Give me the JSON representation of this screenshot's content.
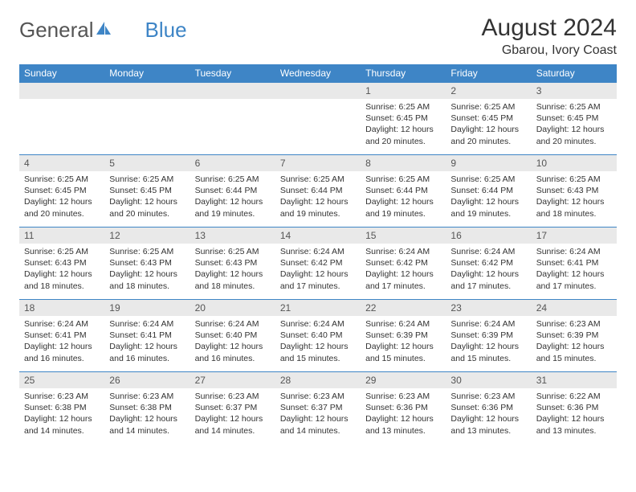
{
  "logo": {
    "word1": "General",
    "word2": "Blue"
  },
  "title": "August 2024",
  "location": "Gbarou, Ivory Coast",
  "colors": {
    "header_bg": "#3e85c6",
    "header_text": "#ffffff",
    "daynum_bg": "#e9e9e9",
    "row_border": "#3e85c6",
    "body_text": "#333333",
    "page_bg": "#ffffff"
  },
  "typography": {
    "title_fontsize": 30,
    "location_fontsize": 16,
    "dayheader_fontsize": 12,
    "daynum_fontsize": 12,
    "cell_fontsize": 10.5
  },
  "day_headers": [
    "Sunday",
    "Monday",
    "Tuesday",
    "Wednesday",
    "Thursday",
    "Friday",
    "Saturday"
  ],
  "weeks": [
    [
      {
        "n": "",
        "lines": []
      },
      {
        "n": "",
        "lines": []
      },
      {
        "n": "",
        "lines": []
      },
      {
        "n": "",
        "lines": []
      },
      {
        "n": "1",
        "lines": [
          "Sunrise: 6:25 AM",
          "Sunset: 6:45 PM",
          "Daylight: 12 hours and 20 minutes."
        ]
      },
      {
        "n": "2",
        "lines": [
          "Sunrise: 6:25 AM",
          "Sunset: 6:45 PM",
          "Daylight: 12 hours and 20 minutes."
        ]
      },
      {
        "n": "3",
        "lines": [
          "Sunrise: 6:25 AM",
          "Sunset: 6:45 PM",
          "Daylight: 12 hours and 20 minutes."
        ]
      }
    ],
    [
      {
        "n": "4",
        "lines": [
          "Sunrise: 6:25 AM",
          "Sunset: 6:45 PM",
          "Daylight: 12 hours and 20 minutes."
        ]
      },
      {
        "n": "5",
        "lines": [
          "Sunrise: 6:25 AM",
          "Sunset: 6:45 PM",
          "Daylight: 12 hours and 20 minutes."
        ]
      },
      {
        "n": "6",
        "lines": [
          "Sunrise: 6:25 AM",
          "Sunset: 6:44 PM",
          "Daylight: 12 hours and 19 minutes."
        ]
      },
      {
        "n": "7",
        "lines": [
          "Sunrise: 6:25 AM",
          "Sunset: 6:44 PM",
          "Daylight: 12 hours and 19 minutes."
        ]
      },
      {
        "n": "8",
        "lines": [
          "Sunrise: 6:25 AM",
          "Sunset: 6:44 PM",
          "Daylight: 12 hours and 19 minutes."
        ]
      },
      {
        "n": "9",
        "lines": [
          "Sunrise: 6:25 AM",
          "Sunset: 6:44 PM",
          "Daylight: 12 hours and 19 minutes."
        ]
      },
      {
        "n": "10",
        "lines": [
          "Sunrise: 6:25 AM",
          "Sunset: 6:43 PM",
          "Daylight: 12 hours and 18 minutes."
        ]
      }
    ],
    [
      {
        "n": "11",
        "lines": [
          "Sunrise: 6:25 AM",
          "Sunset: 6:43 PM",
          "Daylight: 12 hours and 18 minutes."
        ]
      },
      {
        "n": "12",
        "lines": [
          "Sunrise: 6:25 AM",
          "Sunset: 6:43 PM",
          "Daylight: 12 hours and 18 minutes."
        ]
      },
      {
        "n": "13",
        "lines": [
          "Sunrise: 6:25 AM",
          "Sunset: 6:43 PM",
          "Daylight: 12 hours and 18 minutes."
        ]
      },
      {
        "n": "14",
        "lines": [
          "Sunrise: 6:24 AM",
          "Sunset: 6:42 PM",
          "Daylight: 12 hours and 17 minutes."
        ]
      },
      {
        "n": "15",
        "lines": [
          "Sunrise: 6:24 AM",
          "Sunset: 6:42 PM",
          "Daylight: 12 hours and 17 minutes."
        ]
      },
      {
        "n": "16",
        "lines": [
          "Sunrise: 6:24 AM",
          "Sunset: 6:42 PM",
          "Daylight: 12 hours and 17 minutes."
        ]
      },
      {
        "n": "17",
        "lines": [
          "Sunrise: 6:24 AM",
          "Sunset: 6:41 PM",
          "Daylight: 12 hours and 17 minutes."
        ]
      }
    ],
    [
      {
        "n": "18",
        "lines": [
          "Sunrise: 6:24 AM",
          "Sunset: 6:41 PM",
          "Daylight: 12 hours and 16 minutes."
        ]
      },
      {
        "n": "19",
        "lines": [
          "Sunrise: 6:24 AM",
          "Sunset: 6:41 PM",
          "Daylight: 12 hours and 16 minutes."
        ]
      },
      {
        "n": "20",
        "lines": [
          "Sunrise: 6:24 AM",
          "Sunset: 6:40 PM",
          "Daylight: 12 hours and 16 minutes."
        ]
      },
      {
        "n": "21",
        "lines": [
          "Sunrise: 6:24 AM",
          "Sunset: 6:40 PM",
          "Daylight: 12 hours and 15 minutes."
        ]
      },
      {
        "n": "22",
        "lines": [
          "Sunrise: 6:24 AM",
          "Sunset: 6:39 PM",
          "Daylight: 12 hours and 15 minutes."
        ]
      },
      {
        "n": "23",
        "lines": [
          "Sunrise: 6:24 AM",
          "Sunset: 6:39 PM",
          "Daylight: 12 hours and 15 minutes."
        ]
      },
      {
        "n": "24",
        "lines": [
          "Sunrise: 6:23 AM",
          "Sunset: 6:39 PM",
          "Daylight: 12 hours and 15 minutes."
        ]
      }
    ],
    [
      {
        "n": "25",
        "lines": [
          "Sunrise: 6:23 AM",
          "Sunset: 6:38 PM",
          "Daylight: 12 hours and 14 minutes."
        ]
      },
      {
        "n": "26",
        "lines": [
          "Sunrise: 6:23 AM",
          "Sunset: 6:38 PM",
          "Daylight: 12 hours and 14 minutes."
        ]
      },
      {
        "n": "27",
        "lines": [
          "Sunrise: 6:23 AM",
          "Sunset: 6:37 PM",
          "Daylight: 12 hours and 14 minutes."
        ]
      },
      {
        "n": "28",
        "lines": [
          "Sunrise: 6:23 AM",
          "Sunset: 6:37 PM",
          "Daylight: 12 hours and 14 minutes."
        ]
      },
      {
        "n": "29",
        "lines": [
          "Sunrise: 6:23 AM",
          "Sunset: 6:36 PM",
          "Daylight: 12 hours and 13 minutes."
        ]
      },
      {
        "n": "30",
        "lines": [
          "Sunrise: 6:23 AM",
          "Sunset: 6:36 PM",
          "Daylight: 12 hours and 13 minutes."
        ]
      },
      {
        "n": "31",
        "lines": [
          "Sunrise: 6:22 AM",
          "Sunset: 6:36 PM",
          "Daylight: 12 hours and 13 minutes."
        ]
      }
    ]
  ]
}
